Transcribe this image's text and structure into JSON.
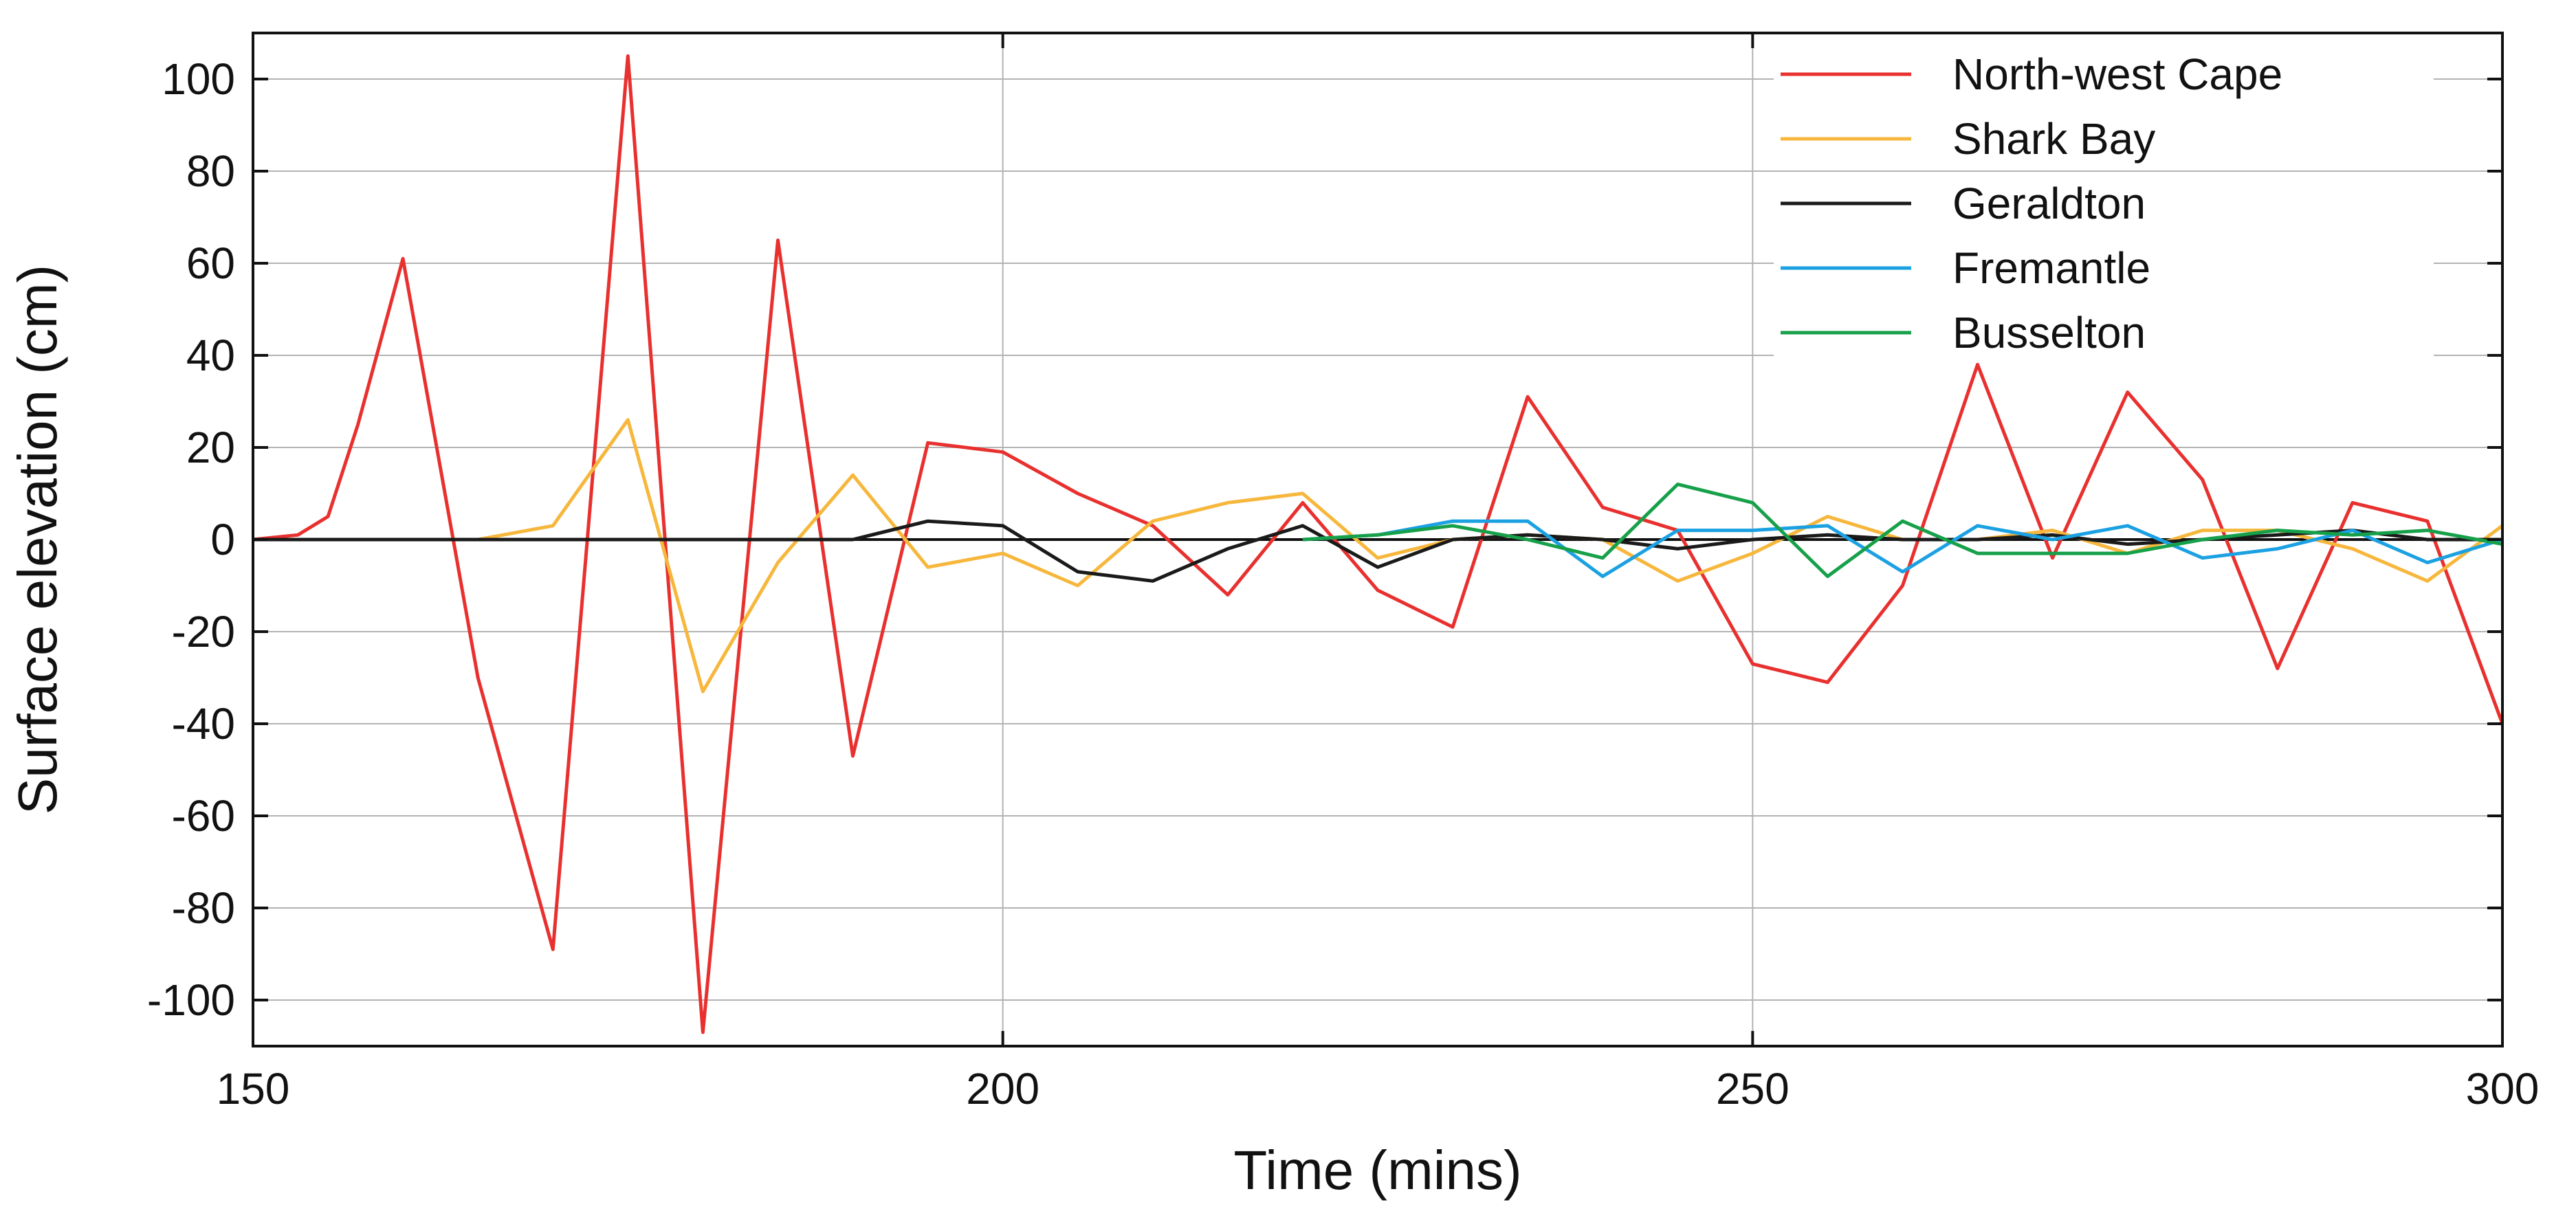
{
  "chart_data": {
    "type": "line",
    "title": "",
    "xlabel": "Time (mins)",
    "ylabel": "Surface elevation (cm)",
    "xlim": [
      150,
      300
    ],
    "ylim": [
      -110,
      110
    ],
    "xticks": [
      150,
      200,
      250,
      300
    ],
    "yticks": [
      100,
      80,
      60,
      40,
      20,
      0,
      -20,
      -40,
      -60,
      -80,
      -100
    ],
    "grid": "major x and y",
    "legend_position": "top-right",
    "zero_line": true,
    "series": [
      {
        "name": "North-west Cape",
        "color": "#e8312f",
        "points": [
          [
            150,
            0
          ],
          [
            153,
            1
          ],
          [
            155,
            5
          ],
          [
            157,
            25
          ],
          [
            160,
            61
          ],
          [
            165,
            -30
          ],
          [
            170,
            -89
          ],
          [
            175,
            105
          ],
          [
            180,
            -107
          ],
          [
            185,
            65
          ],
          [
            190,
            -47
          ],
          [
            195,
            21
          ],
          [
            200,
            19
          ],
          [
            205,
            10
          ],
          [
            210,
            3
          ],
          [
            215,
            -12
          ],
          [
            220,
            8
          ],
          [
            225,
            -11
          ],
          [
            230,
            -19
          ],
          [
            235,
            31
          ],
          [
            240,
            7
          ],
          [
            245,
            2
          ],
          [
            250,
            -27
          ],
          [
            255,
            -31
          ],
          [
            260,
            -10
          ],
          [
            265,
            38
          ],
          [
            270,
            -4
          ],
          [
            275,
            32
          ],
          [
            280,
            13
          ],
          [
            285,
            -28
          ],
          [
            290,
            8
          ],
          [
            295,
            4
          ],
          [
            300,
            -40
          ]
        ]
      },
      {
        "name": "Shark Bay",
        "color": "#f6b73c",
        "points": [
          [
            150,
            0
          ],
          [
            165,
            0
          ],
          [
            170,
            3
          ],
          [
            175,
            26
          ],
          [
            180,
            -33
          ],
          [
            185,
            -5
          ],
          [
            190,
            14
          ],
          [
            195,
            -6
          ],
          [
            200,
            -3
          ],
          [
            205,
            -10
          ],
          [
            210,
            4
          ],
          [
            215,
            8
          ],
          [
            220,
            10
          ],
          [
            225,
            -4
          ],
          [
            230,
            0
          ],
          [
            235,
            1
          ],
          [
            240,
            0
          ],
          [
            245,
            -9
          ],
          [
            250,
            -3
          ],
          [
            255,
            5
          ],
          [
            260,
            0
          ],
          [
            265,
            0
          ],
          [
            270,
            2
          ],
          [
            275,
            -3
          ],
          [
            280,
            2
          ],
          [
            285,
            2
          ],
          [
            290,
            -2
          ],
          [
            295,
            -9
          ],
          [
            300,
            3
          ]
        ]
      },
      {
        "name": "Geraldton",
        "color": "#1a1a1a",
        "points": [
          [
            150,
            0
          ],
          [
            190,
            0
          ],
          [
            195,
            4
          ],
          [
            200,
            3
          ],
          [
            205,
            -7
          ],
          [
            210,
            -9
          ],
          [
            215,
            -2
          ],
          [
            220,
            3
          ],
          [
            225,
            -6
          ],
          [
            230,
            0
          ],
          [
            235,
            1
          ],
          [
            240,
            0
          ],
          [
            245,
            -2
          ],
          [
            250,
            0
          ],
          [
            255,
            1
          ],
          [
            260,
            0
          ],
          [
            265,
            0
          ],
          [
            270,
            1
          ],
          [
            275,
            -1
          ],
          [
            280,
            0
          ],
          [
            285,
            1
          ],
          [
            290,
            2
          ],
          [
            295,
            0
          ],
          [
            300,
            0
          ]
        ]
      },
      {
        "name": "Fremantle",
        "color": "#1ba1e2",
        "points": [
          [
            220,
            0
          ],
          [
            225,
            1
          ],
          [
            230,
            4
          ],
          [
            235,
            4
          ],
          [
            240,
            -8
          ],
          [
            245,
            2
          ],
          [
            250,
            2
          ],
          [
            255,
            3
          ],
          [
            260,
            -7
          ],
          [
            265,
            3
          ],
          [
            270,
            0
          ],
          [
            275,
            3
          ],
          [
            280,
            -4
          ],
          [
            285,
            -2
          ],
          [
            290,
            2
          ],
          [
            295,
            -5
          ],
          [
            300,
            0
          ]
        ]
      },
      {
        "name": "Busselton",
        "color": "#17a04a",
        "points": [
          [
            220,
            0
          ],
          [
            225,
            1
          ],
          [
            230,
            3
          ],
          [
            235,
            0
          ],
          [
            240,
            -4
          ],
          [
            245,
            12
          ],
          [
            250,
            8
          ],
          [
            255,
            -8
          ],
          [
            260,
            4
          ],
          [
            265,
            -3
          ],
          [
            270,
            -3
          ],
          [
            275,
            -3
          ],
          [
            280,
            0
          ],
          [
            285,
            2
          ],
          [
            290,
            1
          ],
          [
            295,
            2
          ],
          [
            300,
            -1
          ]
        ]
      }
    ]
  }
}
